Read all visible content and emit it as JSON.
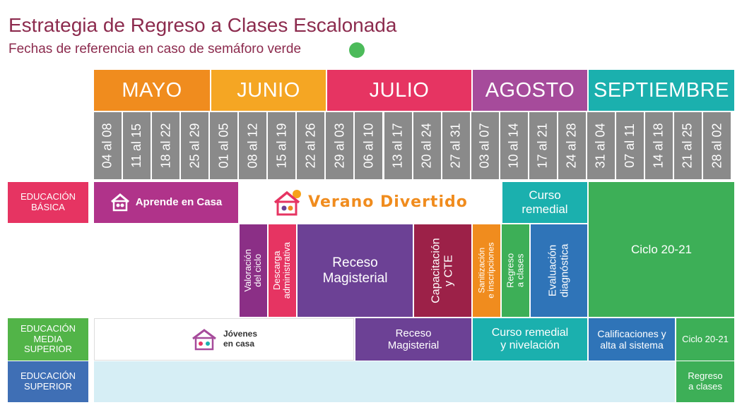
{
  "header": {
    "title": "Estrategia de Regreso a Clases Escalonada",
    "subtitle": "Fechas de referencia en caso de semáforo verde",
    "status_dot_color": "#4cbb5a"
  },
  "months": [
    {
      "label": "MAYO",
      "color": "#f08c1e"
    },
    {
      "label": "JUNIO",
      "color": "#f5a623"
    },
    {
      "label": "JULIO",
      "color": "#e63462"
    },
    {
      "label": "AGOSTO",
      "color": "#a64b9b"
    },
    {
      "label": "SEPTIEMBRE",
      "color": "#1bb0ae"
    }
  ],
  "weeks": [
    "04 al 08",
    "11 al 15",
    "18 al 22",
    "25 al 29",
    "01 al 05",
    "08 al 12",
    "15 al 19",
    "22 al 26",
    "29 al 03",
    "06 al 10",
    "13 al 17",
    "20 al 24",
    "27 al 31",
    "03 al 07",
    "10 al 14",
    "17 al 21",
    "24 al 28",
    "31 al 04",
    "07 al 11",
    "14 al 18",
    "21 al 25",
    "28 al 02"
  ],
  "rows": {
    "basica": "EDUCACIÓN\nBÁSICA",
    "media": "EDUCACIÓN\nMEDIA\nSUPERIOR",
    "superior": "EDUCACIÓN\nSUPERIOR"
  },
  "basica": {
    "aprende": "Aprende en Casa",
    "verano": "Verano Divertido",
    "curso_remedial": "Curso\nremedial",
    "valoracion": "Valoración\ndel ciclo",
    "descarga": "Descarga\nadministrativa",
    "receso": "Receso\nMagisterial",
    "capacitacion": "Capacitación\ny CTE",
    "sanitizacion": "Sanitización\ne inscripciones",
    "regreso": "Regreso\na clases",
    "evaluacion": "Evaluación\ndiagnóstica",
    "ciclo": "Ciclo 20-21"
  },
  "media": {
    "jovenes": "Jóvenes\nen casa",
    "receso": "Receso\nMagisterial",
    "curso": "Curso remedial\ny nivelación",
    "calificaciones": "Calificaciones y\nalta al sistema",
    "ciclo": "Ciclo 20-21"
  },
  "superior": {
    "regreso": "Regreso\na clases"
  },
  "colors": {
    "label_basica": "#e63462",
    "label_media": "#52b448",
    "label_superior": "#3f6fb5",
    "week_gray": "#8a8a8a",
    "aprende": "#b0338a",
    "teal": "#1bb0ae",
    "green": "#3daf57",
    "valoracion": "#8b2f86",
    "descarga": "#e63462",
    "receso": "#6c4195",
    "capacitacion": "#9c2148",
    "sanitizacion": "#f08c1e",
    "evaluacion": "#2f74b8",
    "light_blue": "#d6eef5"
  },
  "icons": [
    "house-icon",
    "sun-icon"
  ]
}
